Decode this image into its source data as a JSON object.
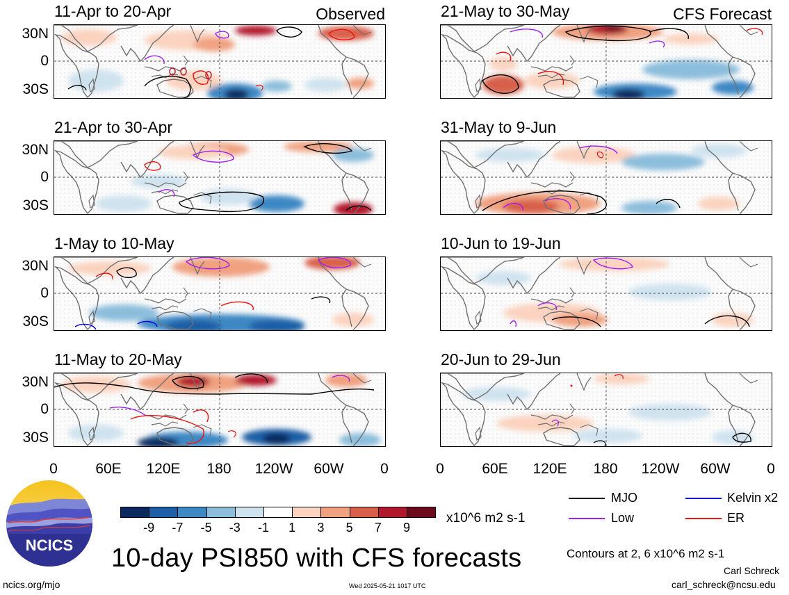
{
  "left_column": {
    "corner_label": "Observed",
    "panels": [
      {
        "title": "11-Apr to 20-Apr"
      },
      {
        "title": "21-Apr to 30-Apr"
      },
      {
        "title": "1-May to 10-May"
      },
      {
        "title": "11-May to 20-May"
      }
    ]
  },
  "right_column": {
    "corner_label": "CFS Forecast",
    "panels": [
      {
        "title": "21-May to 30-May"
      },
      {
        "title": "31-May to 9-Jun"
      },
      {
        "title": "10-Jun to 19-Jun"
      },
      {
        "title": "20-Jun to 29-Jun"
      }
    ]
  },
  "lat_labels": [
    "30N",
    "0",
    "30S"
  ],
  "lon_labels": [
    "0",
    "60E",
    "120E",
    "180",
    "120W",
    "60W",
    "0"
  ],
  "colorbar": {
    "labels": [
      "-9",
      "-7",
      "-5",
      "-3",
      "-1",
      "1",
      "3",
      "5",
      "7",
      "9"
    ],
    "colors": [
      "#0a2a5e",
      "#1d5fa6",
      "#3e88c4",
      "#8cbedc",
      "#cfe3ef",
      "#ffffff",
      "#fbd3bf",
      "#f0a180",
      "#d8604b",
      "#b2182b",
      "#6b0b1c"
    ],
    "unit": "x10^6 m2 s-1"
  },
  "main_title": "10-day PSI850 with CFS forecasts",
  "legend": {
    "items": [
      {
        "label": "MJO",
        "color": "#000000"
      },
      {
        "label": "Kelvin x2",
        "color": "#0000dd"
      },
      {
        "label": "Low",
        "color": "#a020f0"
      },
      {
        "label": "ER",
        "color": "#ee1111"
      }
    ],
    "contours_note": "Contours at 2, 6 x10^6 m2 s-1"
  },
  "logo_text": "NCICS",
  "footer": {
    "url": "ncics.org/mjo",
    "timestamp": "Wed 2025-05-21 1017 UTC",
    "author": "Carl Schreck",
    "email": "carl_schreck@ncsu.edu"
  }
}
